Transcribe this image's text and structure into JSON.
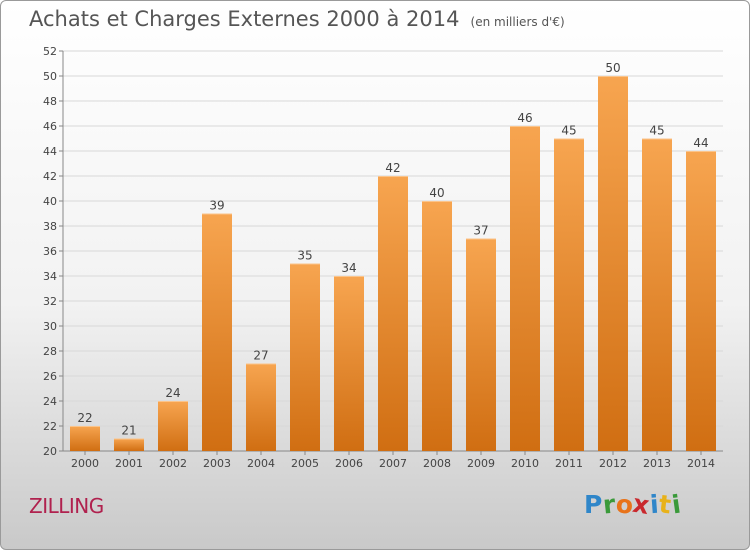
{
  "header": {
    "title": "Achats et Charges Externes 2000 à 2014",
    "subtitle": "(en milliers d'€)"
  },
  "footer": {
    "location": "ZILLING",
    "logo_text": "Proxiti"
  },
  "colors": {
    "bar_light": "#f7a550",
    "bar_dark": "#d06e12",
    "grid": "#d8d8d8",
    "axis_text": "#444444",
    "title_text": "#555555",
    "location_text": "#b0214e"
  },
  "chart_data": {
    "type": "bar",
    "title": "Achats et Charges Externes 2000 à 2014",
    "subtitle": "(en milliers d'€)",
    "categories": [
      "2000",
      "2001",
      "2002",
      "2003",
      "2004",
      "2005",
      "2006",
      "2007",
      "2008",
      "2009",
      "2010",
      "2011",
      "2012",
      "2013",
      "2014"
    ],
    "values": [
      22,
      21,
      24,
      39,
      27,
      35,
      34,
      42,
      40,
      37,
      46,
      45,
      50,
      45,
      44
    ],
    "ylim": [
      20,
      52
    ],
    "yticks": [
      20,
      22,
      24,
      26,
      28,
      30,
      32,
      34,
      36,
      38,
      40,
      42,
      44,
      46,
      48,
      50,
      52
    ],
    "grid": true,
    "data_labels": true,
    "xlabel": "",
    "ylabel": ""
  }
}
